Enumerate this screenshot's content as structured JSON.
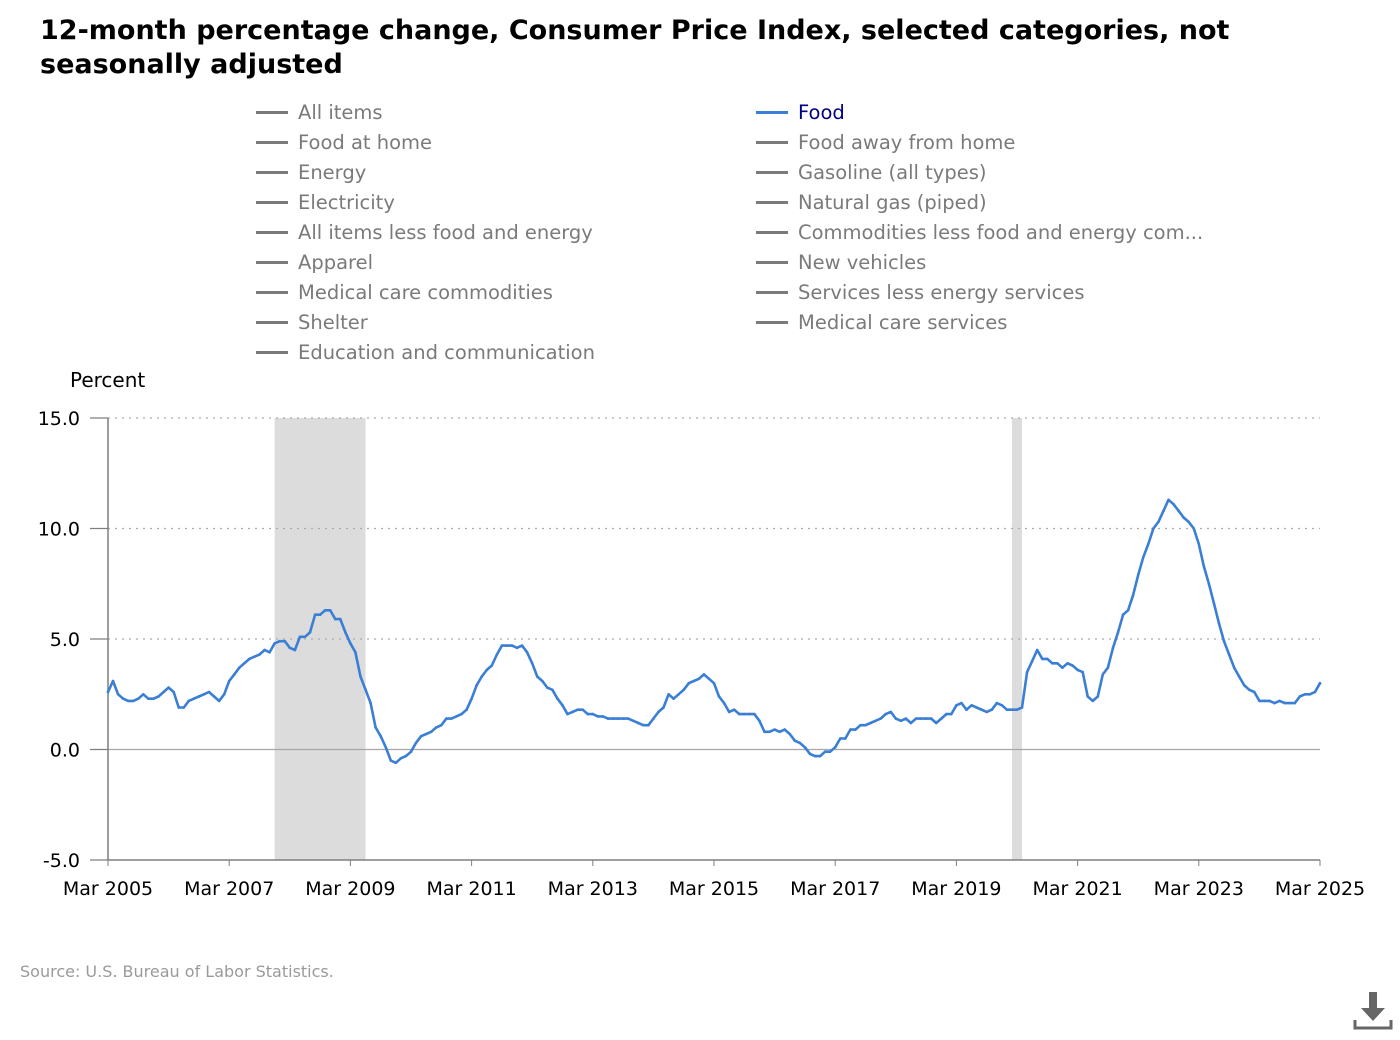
{
  "chart_data": {
    "type": "line",
    "title": "12-month percentage change, Consumer Price Index, selected categories, not seasonally adjusted",
    "ylabel": "Percent",
    "xlabel": "",
    "ylim": [
      -5,
      15
    ],
    "y_ticks": [
      15.0,
      10.0,
      5.0,
      0.0,
      -5.0
    ],
    "y_tick_labels": [
      "15.0",
      "10.0",
      "5.0",
      "0.0",
      "-5.0"
    ],
    "x_range": [
      "2005-03",
      "2025-03"
    ],
    "x_tick_labels": [
      "Mar 2005",
      "Mar 2007",
      "Mar 2009",
      "Mar 2011",
      "Mar 2013",
      "Mar 2015",
      "Mar 2017",
      "Mar 2019",
      "Mar 2021",
      "Mar 2023",
      "Mar 2025"
    ],
    "x_tick_dates": [
      "2005-03",
      "2007-03",
      "2009-03",
      "2011-03",
      "2013-03",
      "2015-03",
      "2017-03",
      "2019-03",
      "2021-03",
      "2023-03",
      "2025-03"
    ],
    "grid": "horizontal dotted",
    "legend_position": "top",
    "legend": [
      {
        "label": "All items",
        "active": false
      },
      {
        "label": "Food",
        "active": true
      },
      {
        "label": "Food at home",
        "active": false
      },
      {
        "label": "Food away from home",
        "active": false
      },
      {
        "label": "Energy",
        "active": false
      },
      {
        "label": "Gasoline (all types)",
        "active": false
      },
      {
        "label": "Electricity",
        "active": false
      },
      {
        "label": "Natural gas (piped)",
        "active": false
      },
      {
        "label": "All items less food and energy",
        "active": false
      },
      {
        "label": "Commodities less food and energy com...",
        "active": false
      },
      {
        "label": "Apparel",
        "active": false
      },
      {
        "label": "New vehicles",
        "active": false
      },
      {
        "label": "Medical care commodities",
        "active": false
      },
      {
        "label": "Services less energy services",
        "active": false
      },
      {
        "label": "Shelter",
        "active": false
      },
      {
        "label": "Medical care services",
        "active": false
      },
      {
        "label": "Education and communication",
        "active": false
      }
    ],
    "recessions": [
      {
        "start": "2007-12",
        "end": "2009-06"
      },
      {
        "start": "2020-02",
        "end": "2020-04"
      }
    ],
    "series": [
      {
        "name": "Food",
        "color": "#3a7fd5",
        "points": [
          [
            "2005-03",
            2.6
          ],
          [
            "2005-04",
            3.1
          ],
          [
            "2005-05",
            2.5
          ],
          [
            "2005-06",
            2.3
          ],
          [
            "2005-07",
            2.2
          ],
          [
            "2005-08",
            2.2
          ],
          [
            "2005-09",
            2.3
          ],
          [
            "2005-10",
            2.5
          ],
          [
            "2005-11",
            2.3
          ],
          [
            "2005-12",
            2.3
          ],
          [
            "2006-01",
            2.4
          ],
          [
            "2006-02",
            2.6
          ],
          [
            "2006-03",
            2.8
          ],
          [
            "2006-04",
            2.6
          ],
          [
            "2006-05",
            1.9
          ],
          [
            "2006-06",
            1.9
          ],
          [
            "2006-07",
            2.2
          ],
          [
            "2006-08",
            2.3
          ],
          [
            "2006-09",
            2.4
          ],
          [
            "2006-10",
            2.5
          ],
          [
            "2006-11",
            2.6
          ],
          [
            "2006-12",
            2.4
          ],
          [
            "2007-01",
            2.2
          ],
          [
            "2007-02",
            2.5
          ],
          [
            "2007-03",
            3.1
          ],
          [
            "2007-04",
            3.4
          ],
          [
            "2007-05",
            3.7
          ],
          [
            "2007-06",
            3.9
          ],
          [
            "2007-07",
            4.1
          ],
          [
            "2007-08",
            4.2
          ],
          [
            "2007-09",
            4.3
          ],
          [
            "2007-10",
            4.5
          ],
          [
            "2007-11",
            4.4
          ],
          [
            "2007-12",
            4.8
          ],
          [
            "2008-01",
            4.9
          ],
          [
            "2008-02",
            4.9
          ],
          [
            "2008-03",
            4.6
          ],
          [
            "2008-04",
            4.5
          ],
          [
            "2008-05",
            5.1
          ],
          [
            "2008-06",
            5.1
          ],
          [
            "2008-07",
            5.3
          ],
          [
            "2008-08",
            6.1
          ],
          [
            "2008-09",
            6.1
          ],
          [
            "2008-10",
            6.3
          ],
          [
            "2008-11",
            6.3
          ],
          [
            "2008-12",
            5.9
          ],
          [
            "2009-01",
            5.9
          ],
          [
            "2009-02",
            5.3
          ],
          [
            "2009-03",
            4.8
          ],
          [
            "2009-04",
            4.4
          ],
          [
            "2009-05",
            3.3
          ],
          [
            "2009-06",
            2.7
          ],
          [
            "2009-07",
            2.1
          ],
          [
            "2009-08",
            1.0
          ],
          [
            "2009-09",
            0.6
          ],
          [
            "2009-10",
            0.1
          ],
          [
            "2009-11",
            -0.5
          ],
          [
            "2009-12",
            -0.6
          ],
          [
            "2010-01",
            -0.4
          ],
          [
            "2010-02",
            -0.3
          ],
          [
            "2010-03",
            -0.1
          ],
          [
            "2010-04",
            0.3
          ],
          [
            "2010-05",
            0.6
          ],
          [
            "2010-06",
            0.7
          ],
          [
            "2010-07",
            0.8
          ],
          [
            "2010-08",
            1.0
          ],
          [
            "2010-09",
            1.1
          ],
          [
            "2010-10",
            1.4
          ],
          [
            "2010-11",
            1.4
          ],
          [
            "2010-12",
            1.5
          ],
          [
            "2011-01",
            1.6
          ],
          [
            "2011-02",
            1.8
          ],
          [
            "2011-03",
            2.3
          ],
          [
            "2011-04",
            2.9
          ],
          [
            "2011-05",
            3.3
          ],
          [
            "2011-06",
            3.6
          ],
          [
            "2011-07",
            3.8
          ],
          [
            "2011-08",
            4.3
          ],
          [
            "2011-09",
            4.7
          ],
          [
            "2011-10",
            4.7
          ],
          [
            "2011-11",
            4.7
          ],
          [
            "2011-12",
            4.6
          ],
          [
            "2012-01",
            4.7
          ],
          [
            "2012-02",
            4.4
          ],
          [
            "2012-03",
            3.9
          ],
          [
            "2012-04",
            3.3
          ],
          [
            "2012-05",
            3.1
          ],
          [
            "2012-06",
            2.8
          ],
          [
            "2012-07",
            2.7
          ],
          [
            "2012-08",
            2.3
          ],
          [
            "2012-09",
            2.0
          ],
          [
            "2012-10",
            1.6
          ],
          [
            "2012-11",
            1.7
          ],
          [
            "2012-12",
            1.8
          ],
          [
            "2013-01",
            1.8
          ],
          [
            "2013-02",
            1.6
          ],
          [
            "2013-03",
            1.6
          ],
          [
            "2013-04",
            1.5
          ],
          [
            "2013-05",
            1.5
          ],
          [
            "2013-06",
            1.4
          ],
          [
            "2013-07",
            1.4
          ],
          [
            "2013-08",
            1.4
          ],
          [
            "2013-09",
            1.4
          ],
          [
            "2013-10",
            1.4
          ],
          [
            "2013-11",
            1.3
          ],
          [
            "2013-12",
            1.2
          ],
          [
            "2014-01",
            1.1
          ],
          [
            "2014-02",
            1.1
          ],
          [
            "2014-03",
            1.4
          ],
          [
            "2014-04",
            1.7
          ],
          [
            "2014-05",
            1.9
          ],
          [
            "2014-06",
            2.5
          ],
          [
            "2014-07",
            2.3
          ],
          [
            "2014-08",
            2.5
          ],
          [
            "2014-09",
            2.7
          ],
          [
            "2014-10",
            3.0
          ],
          [
            "2014-11",
            3.1
          ],
          [
            "2014-12",
            3.2
          ],
          [
            "2015-01",
            3.4
          ],
          [
            "2015-02",
            3.2
          ],
          [
            "2015-03",
            3.0
          ],
          [
            "2015-04",
            2.4
          ],
          [
            "2015-05",
            2.1
          ],
          [
            "2015-06",
            1.7
          ],
          [
            "2015-07",
            1.8
          ],
          [
            "2015-08",
            1.6
          ],
          [
            "2015-09",
            1.6
          ],
          [
            "2015-10",
            1.6
          ],
          [
            "2015-11",
            1.6
          ],
          [
            "2015-12",
            1.3
          ],
          [
            "2016-01",
            0.8
          ],
          [
            "2016-02",
            0.8
          ],
          [
            "2016-03",
            0.9
          ],
          [
            "2016-04",
            0.8
          ],
          [
            "2016-05",
            0.9
          ],
          [
            "2016-06",
            0.7
          ],
          [
            "2016-07",
            0.4
          ],
          [
            "2016-08",
            0.3
          ],
          [
            "2016-09",
            0.1
          ],
          [
            "2016-10",
            -0.2
          ],
          [
            "2016-11",
            -0.3
          ],
          [
            "2016-12",
            -0.3
          ],
          [
            "2017-01",
            -0.1
          ],
          [
            "2017-02",
            -0.1
          ],
          [
            "2017-03",
            0.1
          ],
          [
            "2017-04",
            0.5
          ],
          [
            "2017-05",
            0.5
          ],
          [
            "2017-06",
            0.9
          ],
          [
            "2017-07",
            0.9
          ],
          [
            "2017-08",
            1.1
          ],
          [
            "2017-09",
            1.1
          ],
          [
            "2017-10",
            1.2
          ],
          [
            "2017-11",
            1.3
          ],
          [
            "2017-12",
            1.4
          ],
          [
            "2018-01",
            1.6
          ],
          [
            "2018-02",
            1.7
          ],
          [
            "2018-03",
            1.4
          ],
          [
            "2018-04",
            1.3
          ],
          [
            "2018-05",
            1.4
          ],
          [
            "2018-06",
            1.2
          ],
          [
            "2018-07",
            1.4
          ],
          [
            "2018-08",
            1.4
          ],
          [
            "2018-09",
            1.4
          ],
          [
            "2018-10",
            1.4
          ],
          [
            "2018-11",
            1.2
          ],
          [
            "2018-12",
            1.4
          ],
          [
            "2019-01",
            1.6
          ],
          [
            "2019-02",
            1.6
          ],
          [
            "2019-03",
            2.0
          ],
          [
            "2019-04",
            2.1
          ],
          [
            "2019-05",
            1.8
          ],
          [
            "2019-06",
            2.0
          ],
          [
            "2019-07",
            1.9
          ],
          [
            "2019-08",
            1.8
          ],
          [
            "2019-09",
            1.7
          ],
          [
            "2019-10",
            1.8
          ],
          [
            "2019-11",
            2.1
          ],
          [
            "2019-12",
            2.0
          ],
          [
            "2020-01",
            1.8
          ],
          [
            "2020-02",
            1.8
          ],
          [
            "2020-03",
            1.8
          ],
          [
            "2020-04",
            1.9
          ],
          [
            "2020-05",
            3.5
          ],
          [
            "2020-06",
            4.0
          ],
          [
            "2020-07",
            4.5
          ],
          [
            "2020-08",
            4.1
          ],
          [
            "2020-09",
            4.1
          ],
          [
            "2020-10",
            3.9
          ],
          [
            "2020-11",
            3.9
          ],
          [
            "2020-12",
            3.7
          ],
          [
            "2021-01",
            3.9
          ],
          [
            "2021-02",
            3.8
          ],
          [
            "2021-03",
            3.6
          ],
          [
            "2021-04",
            3.5
          ],
          [
            "2021-05",
            2.4
          ],
          [
            "2021-06",
            2.2
          ],
          [
            "2021-07",
            2.4
          ],
          [
            "2021-08",
            3.4
          ],
          [
            "2021-09",
            3.7
          ],
          [
            "2021-10",
            4.6
          ],
          [
            "2021-11",
            5.3
          ],
          [
            "2021-12",
            6.1
          ],
          [
            "2022-01",
            6.3
          ],
          [
            "2022-02",
            7.0
          ],
          [
            "2022-03",
            7.9
          ],
          [
            "2022-04",
            8.7
          ],
          [
            "2022-05",
            9.3
          ],
          [
            "2022-06",
            10.0
          ],
          [
            "2022-07",
            10.3
          ],
          [
            "2022-08",
            10.8
          ],
          [
            "2022-09",
            11.3
          ],
          [
            "2022-10",
            11.1
          ],
          [
            "2022-11",
            10.8
          ],
          [
            "2022-12",
            10.5
          ],
          [
            "2023-01",
            10.3
          ],
          [
            "2023-02",
            10.0
          ],
          [
            "2023-03",
            9.3
          ],
          [
            "2023-04",
            8.3
          ],
          [
            "2023-05",
            7.5
          ],
          [
            "2023-06",
            6.6
          ],
          [
            "2023-07",
            5.7
          ],
          [
            "2023-08",
            4.9
          ],
          [
            "2023-09",
            4.3
          ],
          [
            "2023-10",
            3.7
          ],
          [
            "2023-11",
            3.3
          ],
          [
            "2023-12",
            2.9
          ],
          [
            "2024-01",
            2.7
          ],
          [
            "2024-02",
            2.6
          ],
          [
            "2024-03",
            2.2
          ],
          [
            "2024-04",
            2.2
          ],
          [
            "2024-05",
            2.2
          ],
          [
            "2024-06",
            2.1
          ],
          [
            "2024-07",
            2.2
          ],
          [
            "2024-08",
            2.1
          ],
          [
            "2024-09",
            2.1
          ],
          [
            "2024-10",
            2.1
          ],
          [
            "2024-11",
            2.4
          ],
          [
            "2024-12",
            2.5
          ],
          [
            "2025-01",
            2.5
          ],
          [
            "2025-02",
            2.6
          ],
          [
            "2025-03",
            3.0
          ]
        ]
      }
    ]
  },
  "source": "Source: U.S. Bureau of Labor Statistics.",
  "download_icon": "download-icon"
}
